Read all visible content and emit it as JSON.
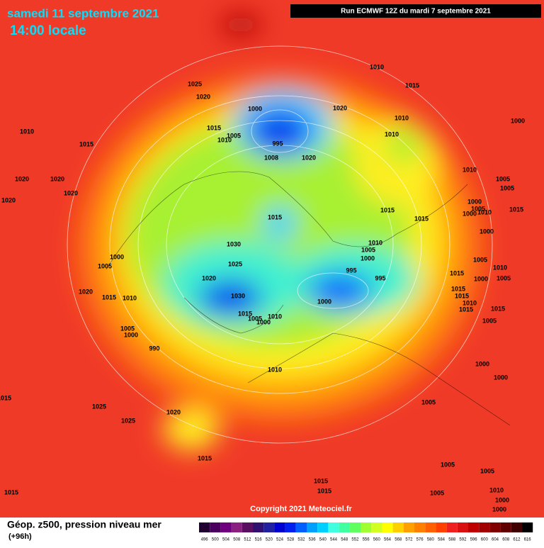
{
  "header": {
    "date": "samedi 11 septembre 2021",
    "time": "14:00 locale",
    "run": "Run ECMWF 12Z du mardi 7 septembre 2021"
  },
  "map": {
    "pressure_labels": [
      "1010",
      "1025",
      "1020",
      "1015",
      "1000",
      "1020",
      "1010",
      "1000",
      "1010",
      "1015",
      "1015",
      "1005",
      "1010",
      "995",
      "1010",
      "1008",
      "1020",
      "1010",
      "1005",
      "1005",
      "1020",
      "1020",
      "1020",
      "1020",
      "1015",
      "1015",
      "1000",
      "1005",
      "1010",
      "1000",
      "1015",
      "1015",
      "1000",
      "1030",
      "1010",
      "1005",
      "1000",
      "1000",
      "1005",
      "1025",
      "995",
      "995",
      "1005",
      "1010",
      "1015",
      "1020",
      "1020",
      "1015",
      "1010",
      "1030",
      "1000",
      "1015",
      "1015",
      "1000",
      "1005",
      "1015",
      "1005",
      "1010",
      "1000",
      "1010",
      "1015",
      "1015",
      "1005",
      "1005",
      "1000",
      "990",
      "1010",
      "1000",
      "1000",
      "1015",
      "1005",
      "1025",
      "1020",
      "1025",
      "1015",
      "1005",
      "1005",
      "1015",
      "1015",
      "1005",
      "1015",
      "1010",
      "1000",
      "1000"
    ]
  },
  "copyright": "Copyright 2021 Meteociel.fr",
  "footer": {
    "title": "Géop. z500, pression niveau mer",
    "lead": "(+96h)"
  },
  "legend": {
    "levels": [
      {
        "label": 496,
        "color": "#200030"
      },
      {
        "label": 500,
        "color": "#4b0060"
      },
      {
        "label": 504,
        "color": "#6e0080"
      },
      {
        "label": 508,
        "color": "#8a2080"
      },
      {
        "label": 512,
        "color": "#5a1060"
      },
      {
        "label": 516,
        "color": "#301070"
      },
      {
        "label": 520,
        "color": "#2020a0"
      },
      {
        "label": 524,
        "color": "#0000d0"
      },
      {
        "label": 528,
        "color": "#0020f0"
      },
      {
        "label": 532,
        "color": "#0060ff"
      },
      {
        "label": 536,
        "color": "#00a0ff"
      },
      {
        "label": 540,
        "color": "#00d0ff"
      },
      {
        "label": 544,
        "color": "#40ffe0"
      },
      {
        "label": 548,
        "color": "#40ffa0"
      },
      {
        "label": 552,
        "color": "#60ff60"
      },
      {
        "label": 556,
        "color": "#a0ff30"
      },
      {
        "label": 560,
        "color": "#d0ff20"
      },
      {
        "label": 564,
        "color": "#ffff00"
      },
      {
        "label": 568,
        "color": "#ffd000"
      },
      {
        "label": 572,
        "color": "#ffa000"
      },
      {
        "label": 576,
        "color": "#ff8000"
      },
      {
        "label": 580,
        "color": "#ff6000"
      },
      {
        "label": 584,
        "color": "#ff4000"
      },
      {
        "label": 588,
        "color": "#f02020"
      },
      {
        "label": 592,
        "color": "#d81010"
      },
      {
        "label": 596,
        "color": "#c00000"
      },
      {
        "label": 600,
        "color": "#a00000"
      },
      {
        "label": 604,
        "color": "#800000"
      },
      {
        "label": 608,
        "color": "#600000"
      },
      {
        "label": 612,
        "color": "#400000"
      },
      {
        "label": 616,
        "color": "#000000"
      }
    ]
  }
}
